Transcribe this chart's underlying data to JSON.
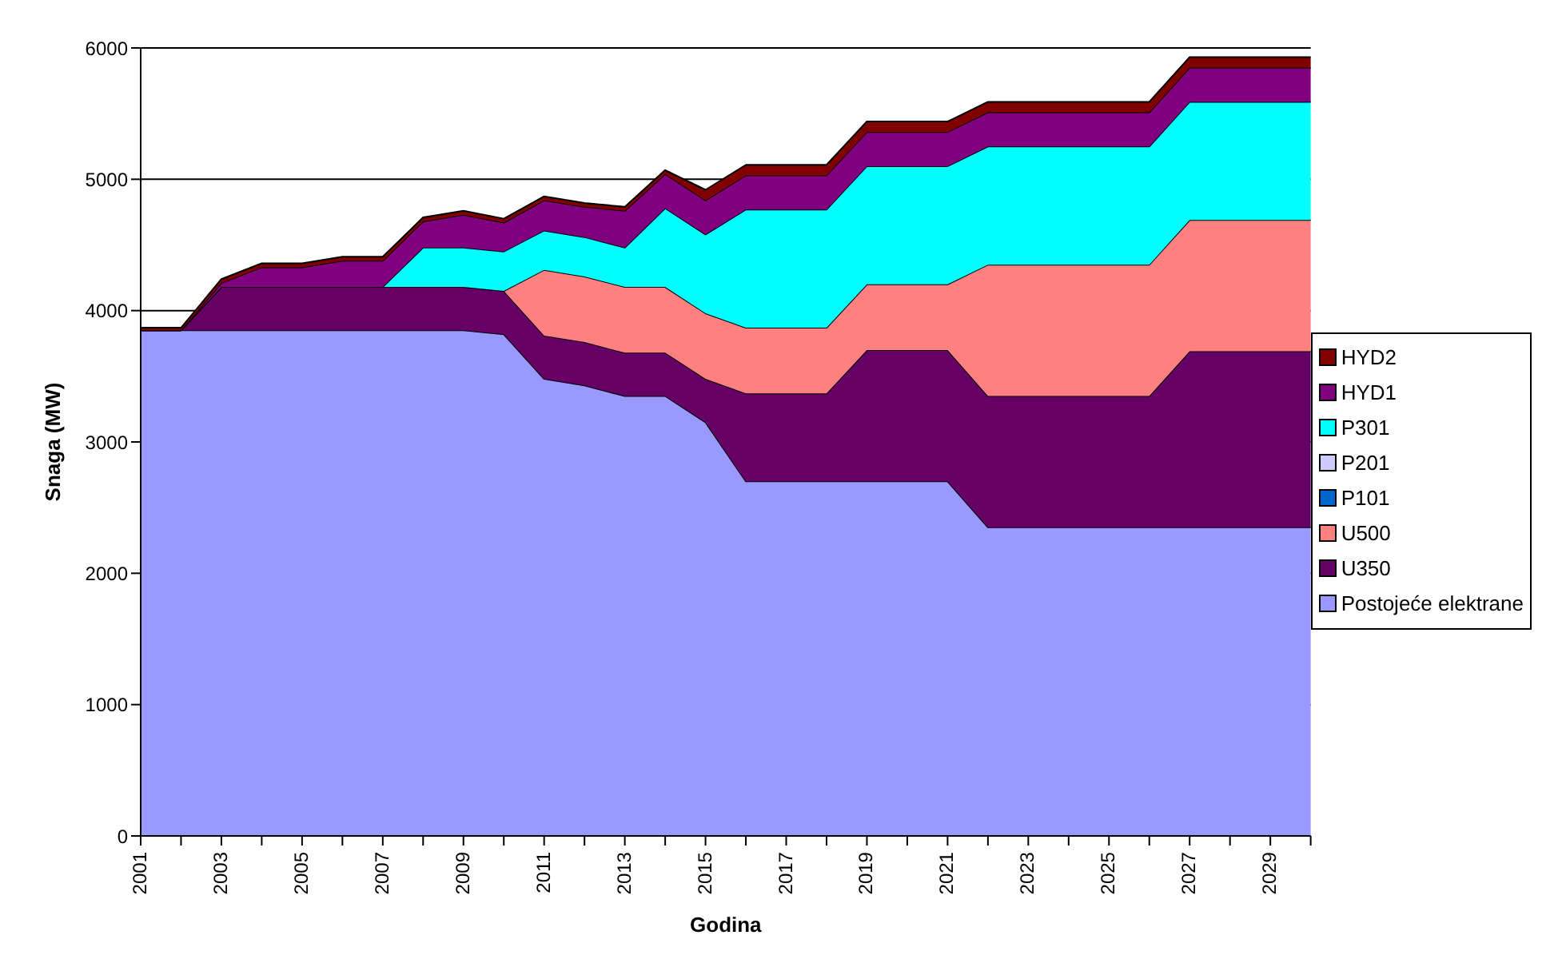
{
  "chart_data": {
    "type": "area",
    "stacked": true,
    "xlabel": "Godina",
    "ylabel": "Snaga (MW)",
    "categories": [
      "2001",
      null,
      "2003",
      null,
      "2005",
      null,
      "2007",
      null,
      "2009",
      null,
      "2011",
      null,
      "2013",
      null,
      "2015",
      null,
      "2017",
      null,
      "2019",
      null,
      "2021",
      null,
      "2023",
      null,
      "2025",
      null,
      "2027",
      null,
      "2029",
      null
    ],
    "series": [
      {
        "name": "Postojeće elektrane",
        "color": "#9999ff",
        "values": [
          3850,
          3850,
          3850,
          3850,
          3850,
          3850,
          3850,
          3850,
          3850,
          3820,
          3480,
          3430,
          3350,
          3350,
          3150,
          2700,
          2700,
          2700,
          2700,
          2700,
          2700,
          2350,
          2350,
          2350,
          2350,
          2350,
          2350,
          2350,
          2350,
          2350
        ]
      },
      {
        "name": "U350",
        "color": "#660066",
        "values": [
          0,
          0,
          330,
          330,
          330,
          330,
          330,
          330,
          330,
          330,
          330,
          330,
          330,
          330,
          330,
          670,
          670,
          670,
          1000,
          1000,
          1000,
          1000,
          1000,
          1000,
          1000,
          1000,
          1340,
          1340,
          1340,
          1340
        ]
      },
      {
        "name": "U500",
        "color": "#ff8080",
        "values": [
          0,
          0,
          0,
          0,
          0,
          0,
          0,
          0,
          0,
          0,
          500,
          500,
          500,
          500,
          500,
          500,
          500,
          500,
          500,
          500,
          500,
          1000,
          1000,
          1000,
          1000,
          1000,
          1000,
          1000,
          1000,
          1000
        ]
      },
      {
        "name": "P101",
        "color": "#0066cc",
        "values": [
          null,
          null,
          null,
          null,
          null,
          null,
          null,
          null,
          null,
          null,
          null,
          null,
          null,
          null,
          null,
          null,
          null,
          null,
          null,
          null,
          null,
          null,
          null,
          null,
          null,
          null,
          null,
          null,
          null,
          null
        ]
      },
      {
        "name": "P201",
        "color": "#ccccff",
        "values": [
          null,
          null,
          null,
          null,
          null,
          null,
          null,
          null,
          null,
          null,
          null,
          null,
          null,
          null,
          null,
          null,
          null,
          null,
          null,
          null,
          null,
          null,
          null,
          null,
          null,
          null,
          null,
          null,
          null,
          null
        ]
      },
      {
        "name": "P301",
        "color": "#00ffff",
        "values": [
          0,
          0,
          0,
          0,
          0,
          0,
          0,
          300,
          300,
          300,
          300,
          300,
          300,
          600,
          600,
          900,
          900,
          900,
          900,
          900,
          900,
          900,
          900,
          900,
          900,
          900,
          900,
          900,
          900,
          900
        ]
      },
      {
        "name": "HYD1",
        "color": "#800080",
        "values": [
          0,
          0,
          30,
          150,
          150,
          200,
          200,
          200,
          250,
          220,
          230,
          230,
          280,
          260,
          260,
          260,
          260,
          260,
          260,
          260,
          260,
          260,
          260,
          260,
          260,
          260,
          260,
          260,
          260,
          260
        ]
      },
      {
        "name": "HYD2",
        "color": "#800000",
        "values": [
          20,
          20,
          30,
          30,
          30,
          30,
          30,
          30,
          30,
          30,
          30,
          30,
          30,
          30,
          80,
          80,
          80,
          80,
          80,
          80,
          80,
          80,
          80,
          80,
          80,
          80,
          80,
          80,
          80,
          80
        ]
      }
    ],
    "ylim": [
      0,
      6000
    ],
    "yticks": [
      0,
      1000,
      2000,
      3000,
      4000,
      5000,
      6000
    ],
    "grid": "y",
    "legend": "right"
  }
}
